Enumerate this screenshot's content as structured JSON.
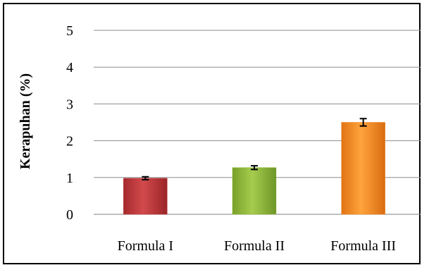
{
  "chart_data": {
    "type": "bar",
    "categories": [
      "Formula I",
      "Formula II",
      "Formula III"
    ],
    "values": [
      0.98,
      1.27,
      2.5
    ],
    "errors": [
      0.04,
      0.05,
      0.1
    ],
    "colors": [
      "#c0373a",
      "#8fb83a",
      "#f08a24"
    ],
    "ylabel": "Kerapuhan (%)",
    "xlabel": "",
    "ylim": [
      0,
      5
    ],
    "yticks": [
      "0",
      "1",
      "2",
      "3",
      "4",
      "5"
    ],
    "grid": true,
    "legend": "none"
  }
}
